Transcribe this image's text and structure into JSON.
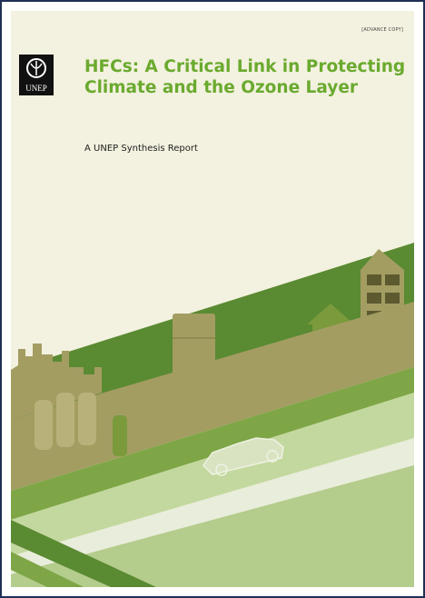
{
  "header": {
    "tag": "[ADVANCE COPY]",
    "logo": "UNEP",
    "title": [
      "HFCs: A Critical Link in Protecting",
      "Climate and the Ozone Layer"
    ],
    "subtitle": "A UNEP Synthesis Report"
  }
}
